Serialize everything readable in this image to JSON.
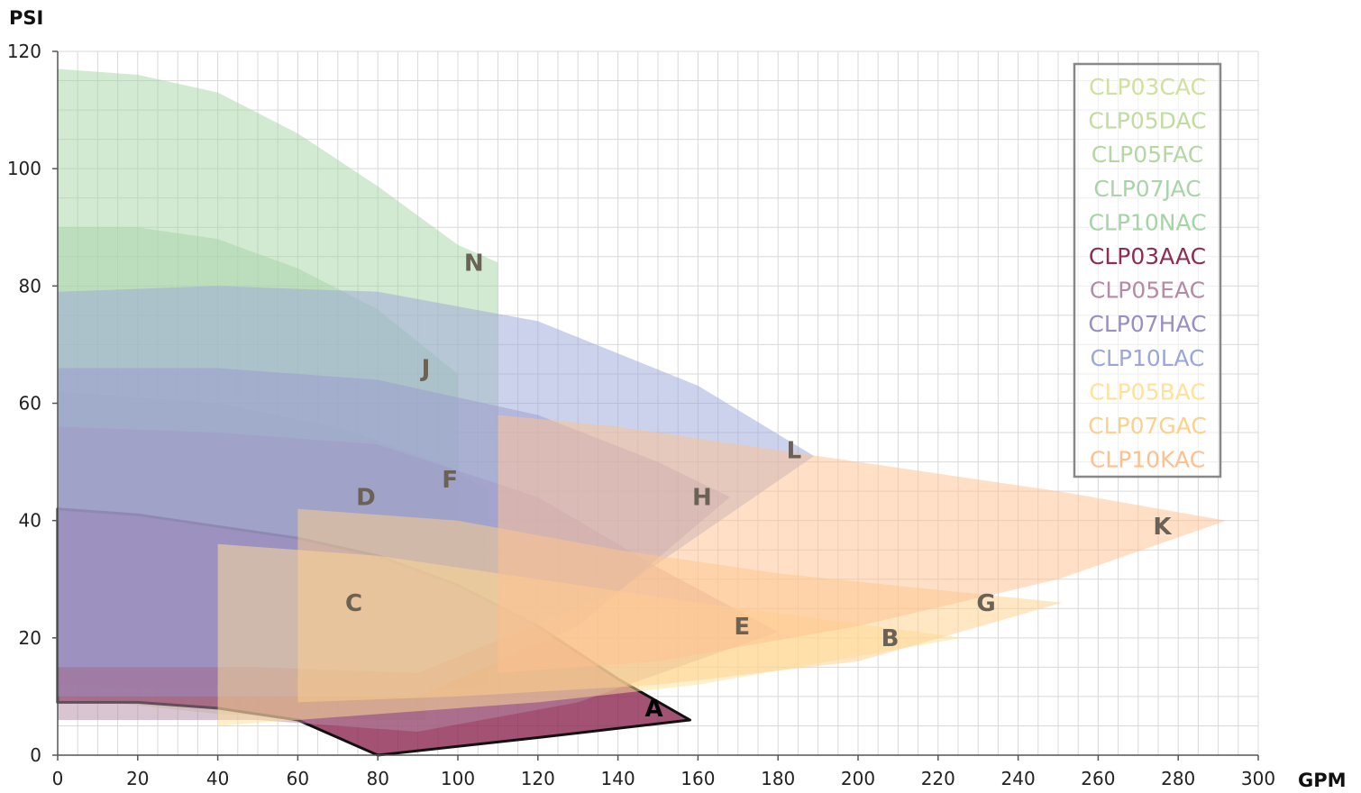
{
  "chart_data": {
    "type": "area",
    "title": "",
    "xlabel": "GPM",
    "ylabel": "PSI",
    "xlim": [
      0,
      300
    ],
    "ylim": [
      0,
      120
    ],
    "x_ticks": [
      0,
      20,
      40,
      60,
      80,
      100,
      120,
      140,
      160,
      180,
      200,
      220,
      240,
      260,
      280,
      300
    ],
    "y_ticks": [
      0,
      20,
      40,
      60,
      80,
      100,
      120
    ],
    "grid": true,
    "legend_position": "top-right",
    "series": [
      {
        "name": "CLP03CAC",
        "label": "C",
        "color": "#cfe0a0",
        "label_at": [
          74,
          26
        ],
        "top": [
          [
            0,
            44
          ],
          [
            40,
            40
          ],
          [
            60,
            38
          ],
          [
            80,
            35
          ],
          [
            92,
            30
          ]
        ],
        "bottom": [
          [
            0,
            10
          ],
          [
            40,
            7
          ],
          [
            80,
            6
          ],
          [
            92,
            6
          ]
        ]
      },
      {
        "name": "CLP05DAC",
        "label": "D",
        "color": "#c2dca0",
        "label_at": [
          77,
          44
        ],
        "top": [
          [
            0,
            56
          ],
          [
            40,
            54
          ],
          [
            60,
            51
          ],
          [
            80,
            45
          ]
        ],
        "bottom": [
          [
            0,
            10
          ],
          [
            40,
            9
          ],
          [
            70,
            8
          ],
          [
            80,
            8
          ]
        ]
      },
      {
        "name": "CLP05FAC",
        "label": "F",
        "color": "#b4d7a4",
        "label_at": [
          98,
          47
        ],
        "top": [
          [
            0,
            62
          ],
          [
            40,
            60
          ],
          [
            70,
            56
          ],
          [
            95,
            50
          ],
          [
            108,
            45
          ]
        ],
        "bottom": [
          [
            0,
            12
          ],
          [
            50,
            11
          ],
          [
            95,
            11
          ],
          [
            108,
            12
          ]
        ]
      },
      {
        "name": "CLP07JAC",
        "label": "J",
        "color": "#a9d4a9",
        "label_at": [
          92,
          66
        ],
        "top": [
          [
            0,
            90
          ],
          [
            20,
            90
          ],
          [
            40,
            88
          ],
          [
            60,
            83
          ],
          [
            80,
            76
          ],
          [
            100,
            65
          ]
        ],
        "bottom": [
          [
            0,
            14
          ],
          [
            30,
            14
          ],
          [
            60,
            14
          ],
          [
            90,
            14
          ],
          [
            100,
            14
          ]
        ]
      },
      {
        "name": "CLP10NAC",
        "label": "N",
        "color": "#a5d4a5",
        "label_at": [
          104,
          84
        ],
        "top": [
          [
            0,
            117
          ],
          [
            20,
            116
          ],
          [
            40,
            113
          ],
          [
            60,
            106
          ],
          [
            80,
            97
          ],
          [
            100,
            87
          ],
          [
            110,
            84
          ]
        ],
        "bottom": [
          [
            0,
            16
          ],
          [
            40,
            16
          ],
          [
            80,
            16
          ],
          [
            110,
            16
          ]
        ]
      },
      {
        "name": "CLP03AAC",
        "label": "A",
        "color": "#8f2c54",
        "label_at": [
          149,
          8
        ],
        "top": [
          [
            0,
            42
          ],
          [
            20,
            41
          ],
          [
            40,
            39
          ],
          [
            60,
            37
          ],
          [
            80,
            34
          ],
          [
            100,
            29
          ],
          [
            120,
            22
          ],
          [
            140,
            13
          ],
          [
            158,
            6
          ]
        ],
        "bottom": [
          [
            0,
            9
          ],
          [
            20,
            9
          ],
          [
            40,
            8
          ],
          [
            60,
            6
          ],
          [
            80,
            0
          ],
          [
            120,
            3
          ],
          [
            158,
            6
          ]
        ]
      },
      {
        "name": "CLP05EAC",
        "label": "E",
        "color": "#b48aa6",
        "label_at": [
          171,
          22
        ],
        "top": [
          [
            0,
            56
          ],
          [
            40,
            55
          ],
          [
            80,
            53
          ],
          [
            120,
            44
          ],
          [
            150,
            32
          ],
          [
            180,
            21
          ]
        ],
        "bottom": [
          [
            0,
            6
          ],
          [
            50,
            6
          ],
          [
            90,
            4
          ],
          [
            130,
            9
          ],
          [
            180,
            21
          ]
        ]
      },
      {
        "name": "CLP07HAC",
        "label": "H",
        "color": "#9a8ec3",
        "label_at": [
          161,
          44
        ],
        "top": [
          [
            0,
            66
          ],
          [
            40,
            66
          ],
          [
            80,
            64
          ],
          [
            120,
            58
          ],
          [
            150,
            50
          ],
          [
            168,
            44
          ]
        ],
        "bottom": [
          [
            0,
            10
          ],
          [
            50,
            10
          ],
          [
            90,
            10
          ],
          [
            130,
            22
          ],
          [
            168,
            44
          ]
        ]
      },
      {
        "name": "CLP10LAC",
        "label": "L",
        "color": "#9ba6da",
        "label_at": [
          184,
          52
        ],
        "top": [
          [
            0,
            79
          ],
          [
            40,
            80
          ],
          [
            80,
            79
          ],
          [
            120,
            74
          ],
          [
            160,
            63
          ],
          [
            189,
            51
          ]
        ],
        "bottom": [
          [
            0,
            15
          ],
          [
            50,
            15
          ],
          [
            90,
            14
          ],
          [
            140,
            28
          ],
          [
            189,
            51
          ]
        ]
      },
      {
        "name": "CLP05BAC",
        "label": "B",
        "color": "#ffe29a",
        "label_at": [
          208,
          20
        ],
        "top": [
          [
            40,
            36
          ],
          [
            80,
            34
          ],
          [
            120,
            30
          ],
          [
            160,
            26
          ],
          [
            226,
            20
          ]
        ],
        "bottom": [
          [
            40,
            5
          ],
          [
            80,
            7
          ],
          [
            120,
            9
          ],
          [
            160,
            12
          ],
          [
            226,
            20
          ]
        ]
      },
      {
        "name": "CLP07GAC",
        "label": "G",
        "color": "#ffd08a",
        "label_at": [
          232,
          26
        ],
        "top": [
          [
            60,
            42
          ],
          [
            100,
            40
          ],
          [
            140,
            35
          ],
          [
            180,
            31
          ],
          [
            251,
            26
          ]
        ],
        "bottom": [
          [
            60,
            9
          ],
          [
            100,
            10
          ],
          [
            150,
            12
          ],
          [
            200,
            16
          ],
          [
            251,
            26
          ]
        ]
      },
      {
        "name": "CLP10KAC",
        "label": "K",
        "color": "#ffc08e",
        "label_at": [
          276,
          39
        ],
        "top": [
          [
            110,
            58
          ],
          [
            140,
            56
          ],
          [
            200,
            50
          ],
          [
            250,
            45
          ],
          [
            292,
            40
          ]
        ],
        "bottom": [
          [
            110,
            14
          ],
          [
            150,
            16
          ],
          [
            200,
            22
          ],
          [
            250,
            30
          ],
          [
            292,
            40
          ]
        ]
      }
    ]
  }
}
